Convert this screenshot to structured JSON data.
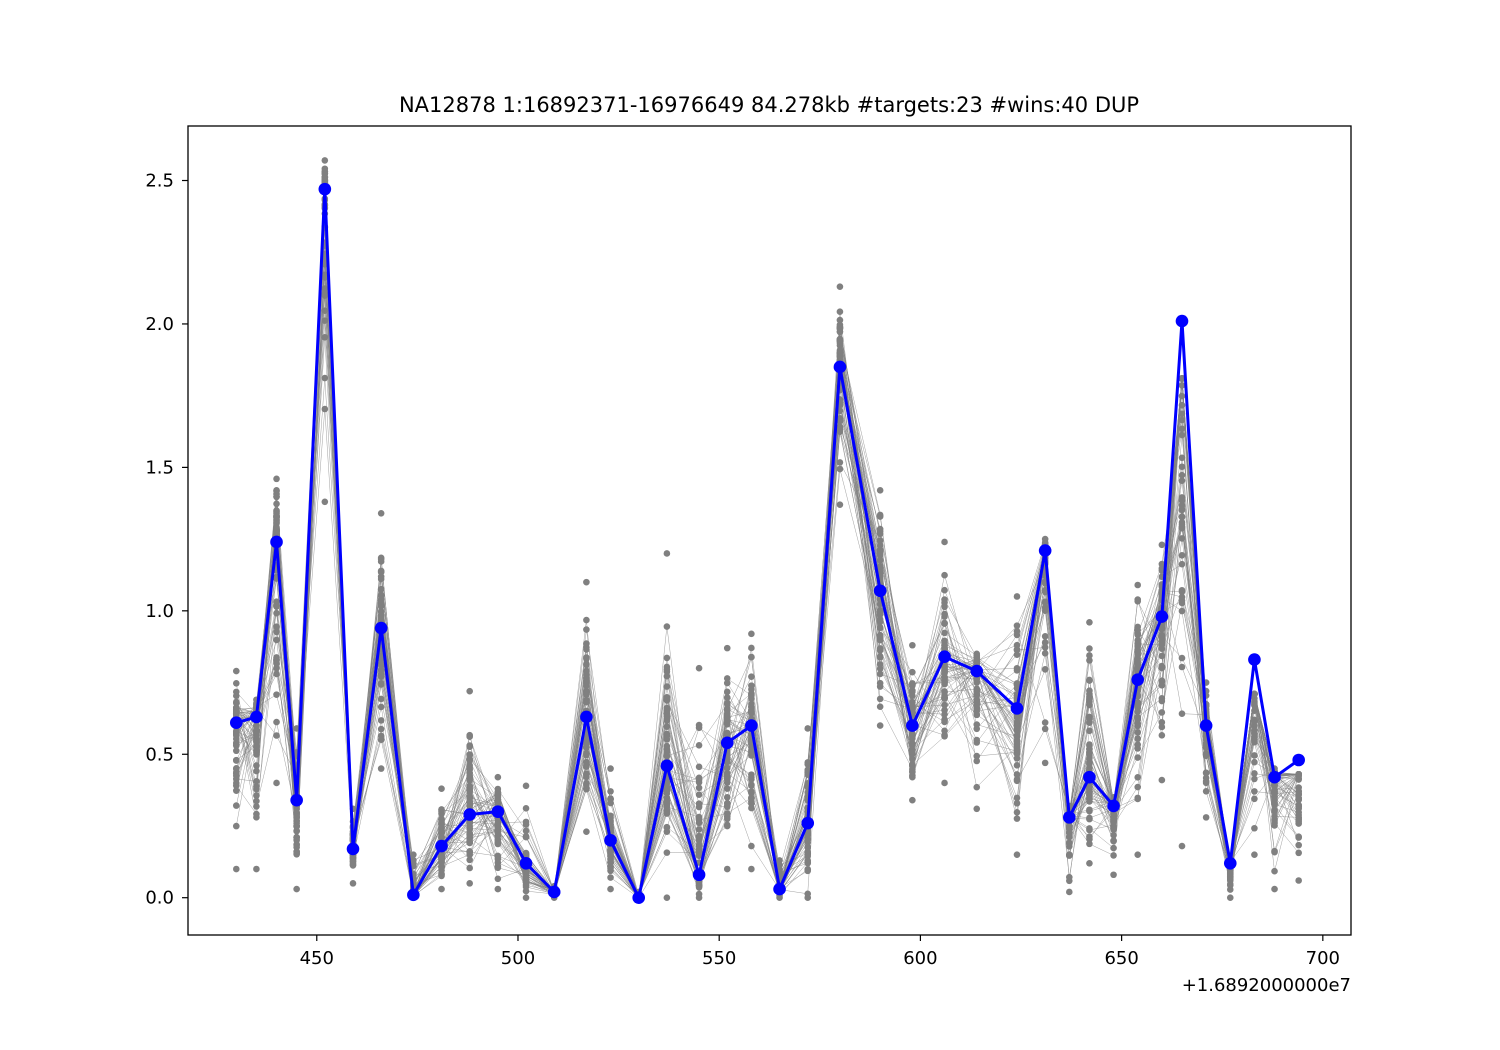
{
  "chart_data": {
    "type": "line",
    "title": "NA12878  1:16892371-16976649  84.278kb  #targets:23  #wins:40  DUP",
    "xlabel": "",
    "ylabel": "",
    "x_offset_label": "+1.6892000000e7",
    "xlim": [
      418,
      707
    ],
    "ylim": [
      -0.13,
      2.69
    ],
    "x_ticks": [
      450,
      500,
      550,
      600,
      650,
      700
    ],
    "x_tick_labels": [
      "450",
      "500",
      "550",
      "600",
      "650",
      "700"
    ],
    "y_ticks": [
      0.0,
      0.5,
      1.0,
      1.5,
      2.0,
      2.5
    ],
    "y_tick_labels": [
      "0.0",
      "0.5",
      "1.0",
      "1.5",
      "2.0",
      "2.5"
    ],
    "grid": false,
    "colors": {
      "highlight": "#0000ff",
      "background_samples": "#808080"
    },
    "series": [
      {
        "x": [
          430,
          435,
          440,
          445,
          452,
          459,
          466,
          474,
          481,
          488,
          495,
          502,
          509,
          517,
          523,
          530,
          537,
          545,
          552,
          558,
          565,
          572,
          580,
          590,
          598,
          606,
          614,
          624,
          631,
          637,
          642,
          648,
          654,
          660,
          665,
          671,
          677,
          683,
          688,
          694
        ],
        "values": [
          0.61,
          0.63,
          1.24,
          0.34,
          2.47,
          0.17,
          0.94,
          0.01,
          0.18,
          0.29,
          0.3,
          0.12,
          0.02,
          0.63,
          0.2,
          0.0,
          0.46,
          0.08,
          0.54,
          0.6,
          0.03,
          0.26,
          1.85,
          1.07,
          0.6,
          0.84,
          0.79,
          0.66,
          1.21,
          0.28,
          0.42,
          0.32,
          0.76,
          0.98,
          2.01,
          0.6,
          0.12,
          0.83,
          0.42,
          0.48
        ]
      }
    ],
    "background_samples": {
      "count": 60,
      "x": [
        430,
        435,
        440,
        445,
        452,
        459,
        466,
        474,
        481,
        488,
        495,
        502,
        509,
        517,
        523,
        530,
        537,
        545,
        552,
        558,
        565,
        572,
        580,
        590,
        598,
        606,
        614,
        624,
        631,
        637,
        642,
        648,
        654,
        660,
        665,
        671,
        677,
        683,
        688,
        694
      ],
      "low": [
        0.1,
        0.1,
        0.4,
        0.03,
        1.38,
        0.05,
        0.45,
        0.0,
        0.03,
        0.05,
        0.03,
        0.0,
        0.0,
        0.23,
        0.03,
        0.0,
        0.0,
        0.0,
        0.1,
        0.1,
        0.0,
        0.0,
        1.37,
        0.6,
        0.34,
        0.4,
        0.31,
        0.15,
        0.47,
        0.02,
        0.12,
        0.08,
        0.15,
        0.41,
        0.18,
        0.28,
        0.0,
        0.15,
        0.03,
        0.06
      ],
      "high": [
        0.79,
        0.69,
        1.46,
        0.59,
        2.57,
        0.31,
        1.34,
        0.15,
        0.38,
        0.72,
        0.42,
        0.39,
        0.04,
        1.1,
        0.45,
        0.02,
        1.2,
        0.8,
        0.87,
        0.92,
        0.13,
        0.59,
        2.13,
        1.42,
        0.88,
        1.24,
        0.85,
        1.05,
        1.25,
        0.32,
        0.96,
        0.35,
        1.09,
        1.23,
        1.81,
        0.75,
        0.13,
        0.71,
        0.45,
        0.43
      ]
    }
  }
}
